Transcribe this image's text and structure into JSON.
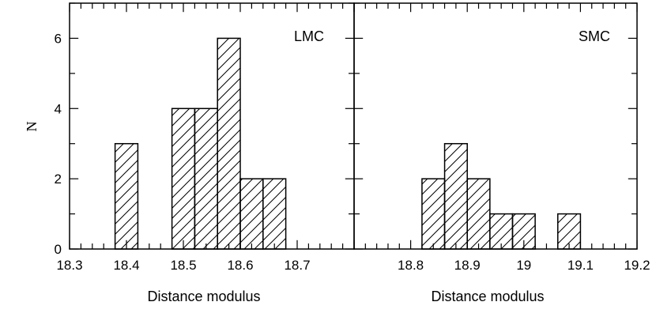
{
  "chart_data": [
    {
      "type": "bar",
      "panel_label": "LMC",
      "xlabel": "Distance modulus",
      "ylabel": "N",
      "xlim": [
        18.3,
        18.8
      ],
      "ylim": [
        0,
        7
      ],
      "x_ticks": [
        "18.3",
        "18.4",
        "18.5",
        "18.6",
        "18.7"
      ],
      "y_ticks": [
        "0",
        "2",
        "4",
        "6"
      ],
      "bin_width": 0.04,
      "bins": [
        {
          "x0": 18.38,
          "x1": 18.42,
          "count": 3
        },
        {
          "x0": 18.42,
          "x1": 18.46,
          "count": 0
        },
        {
          "x0": 18.48,
          "x1": 18.52,
          "count": 4
        },
        {
          "x0": 18.52,
          "x1": 18.56,
          "count": 4
        },
        {
          "x0": 18.56,
          "x1": 18.6,
          "count": 6
        },
        {
          "x0": 18.6,
          "x1": 18.64,
          "count": 2
        },
        {
          "x0": 18.64,
          "x1": 18.68,
          "count": 2
        }
      ],
      "hatch": "diagonal"
    },
    {
      "type": "bar",
      "panel_label": "SMC",
      "xlabel": "Distance modulus",
      "ylabel": "",
      "xlim": [
        18.7,
        19.2
      ],
      "ylim": [
        0,
        7
      ],
      "x_ticks": [
        "18.8",
        "18.9",
        "19",
        "19.1",
        "19.2"
      ],
      "y_ticks": [],
      "bin_width": 0.04,
      "bins": [
        {
          "x0": 18.82,
          "x1": 18.86,
          "count": 2
        },
        {
          "x0": 18.86,
          "x1": 18.9,
          "count": 3
        },
        {
          "x0": 18.9,
          "x1": 18.94,
          "count": 2
        },
        {
          "x0": 18.94,
          "x1": 18.98,
          "count": 1
        },
        {
          "x0": 18.98,
          "x1": 19.02,
          "count": 1
        },
        {
          "x0": 19.02,
          "x1": 19.06,
          "count": 0
        },
        {
          "x0": 19.06,
          "x1": 19.1,
          "count": 1
        }
      ],
      "hatch": "diagonal"
    }
  ],
  "colors": {
    "stroke": "#000000",
    "background": "#ffffff"
  }
}
